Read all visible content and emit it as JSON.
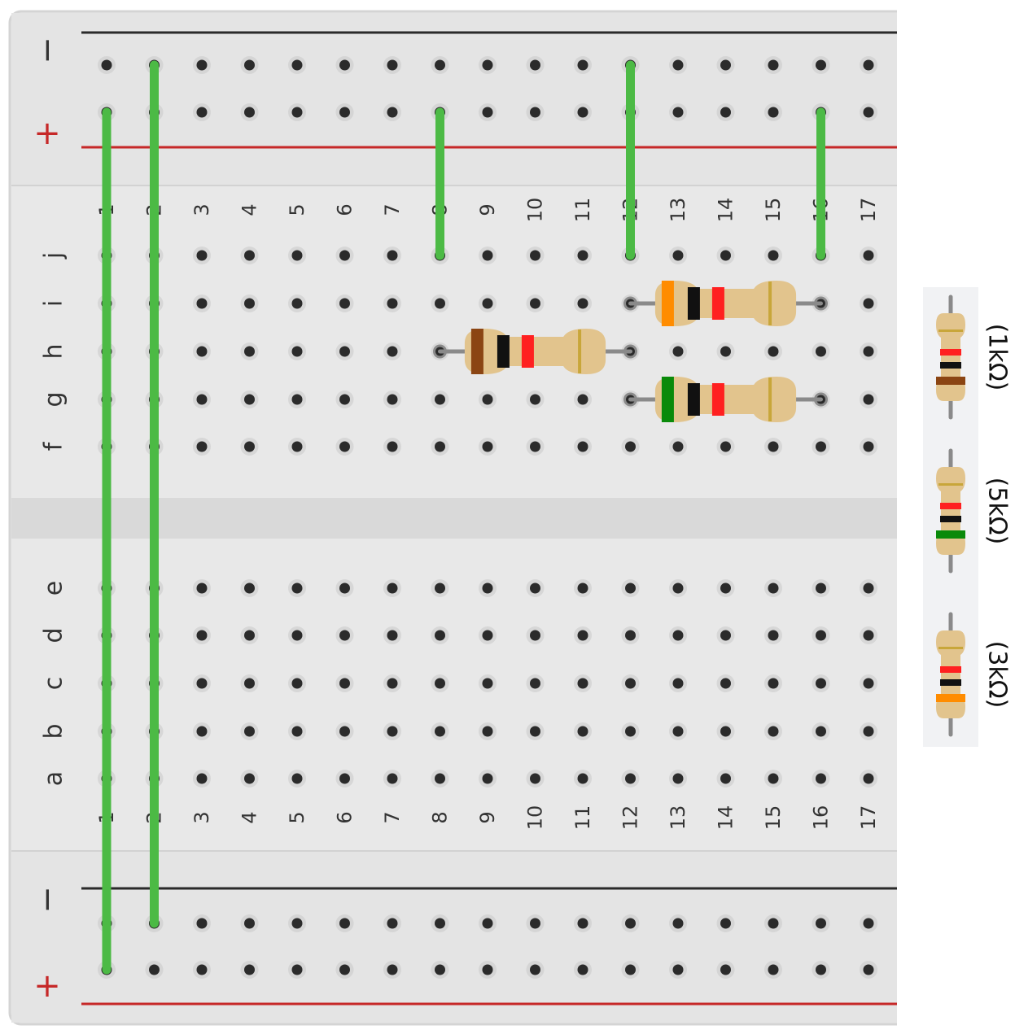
{
  "breadboard": {
    "rail_symbols": {
      "minus": "−",
      "plus": "+"
    },
    "row_letters_top": [
      "f",
      "g",
      "h",
      "i",
      "j"
    ],
    "row_letters_bottom": [
      "a",
      "b",
      "c",
      "d",
      "e"
    ],
    "column_numbers": [
      "1",
      "2",
      "3",
      "4",
      "5",
      "6",
      "7",
      "8",
      "9",
      "10",
      "11",
      "12",
      "13",
      "14",
      "15",
      "16",
      "17"
    ],
    "colors": {
      "board": "#e8e8e8",
      "board_edge": "#d4d4d4",
      "center_channel": "#d9d9d9",
      "hole": "#2b2b2b",
      "hole_ring": "#c9c9c9",
      "rail_negative_line": "#2a2a2a",
      "rail_positive_line": "#c62828",
      "wire": "#4cba45",
      "resistor_body": "#e2c48d",
      "lead": "#8a8a8a"
    }
  },
  "wires": [
    {
      "column": 1,
      "from": "top-rail-plus",
      "to": "bottom-rail-plus"
    },
    {
      "column": 2,
      "from": "top-rail-minus",
      "to": "bottom-rail-minus"
    },
    {
      "column": 8,
      "from": "top-rail-plus",
      "to": "j"
    },
    {
      "column": 12,
      "from": "top-rail-minus",
      "to": "j"
    },
    {
      "column": 16,
      "from": "top-rail-plus",
      "to": "j"
    }
  ],
  "resistors": [
    {
      "row": "h",
      "from_column": 8,
      "to_column": 12,
      "bands": [
        "#8b4513",
        "#111111",
        "#ff2020"
      ],
      "tolerance_band": "#c8a63a"
    },
    {
      "row": "i",
      "from_column": 12,
      "to_column": 16,
      "bands": [
        "#ff8c00",
        "#111111",
        "#ff2020"
      ],
      "tolerance_band": "#c8a63a"
    },
    {
      "row": "g",
      "from_column": 12,
      "to_column": 16,
      "bands": [
        "#0a8a0a",
        "#111111",
        "#ff2020"
      ],
      "tolerance_band": "#c8a63a"
    }
  ],
  "legend": {
    "items": [
      {
        "label": "(1kΩ)",
        "bands": [
          "#8b4513",
          "#111111",
          "#ff2020"
        ]
      },
      {
        "label": "(5kΩ)",
        "bands": [
          "#0a8a0a",
          "#111111",
          "#ff2020"
        ]
      },
      {
        "label": "(3kΩ)",
        "bands": [
          "#ff8c00",
          "#111111",
          "#ff2020"
        ]
      }
    ]
  }
}
